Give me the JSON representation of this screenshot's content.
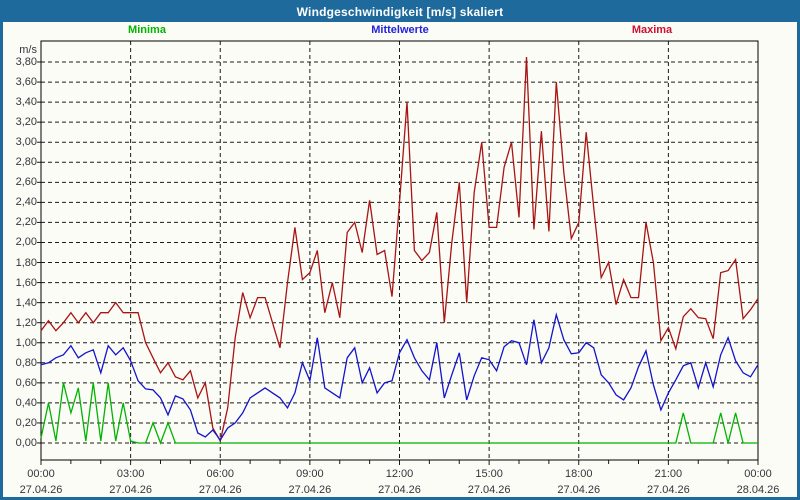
{
  "window": {
    "title": "Windgeschwindigkeit [m/s] skaliert"
  },
  "legend": [
    {
      "label": "Minima",
      "color": "#00b400"
    },
    {
      "label": "Mittelwerte",
      "color": "#2222dd"
    },
    {
      "label": "Maxima",
      "color": "#cc1133"
    }
  ],
  "axes": {
    "unit_label": "m/s",
    "y_ticks": [
      "0,00",
      "0,20",
      "0,40",
      "0,60",
      "0,80",
      "1,00",
      "1,20",
      "1,40",
      "1,60",
      "1,80",
      "2,00",
      "2,20",
      "2,40",
      "2,60",
      "2,80",
      "3,00",
      "3,20",
      "3,40",
      "3,60",
      "3,80"
    ],
    "x_ticks": [
      {
        "time": "00:00",
        "date": "27.04.26"
      },
      {
        "time": "03:00",
        "date": "27.04.26"
      },
      {
        "time": "06:00",
        "date": "27.04.26"
      },
      {
        "time": "09:00",
        "date": "27.04.26"
      },
      {
        "time": "12:00",
        "date": "27.04.26"
      },
      {
        "time": "15:00",
        "date": "27.04.26"
      },
      {
        "time": "18:00",
        "date": "27.04.26"
      },
      {
        "time": "21:00",
        "date": "27.04.26"
      },
      {
        "time": "00:00",
        "date": "28.04.26"
      }
    ]
  },
  "chart_data": {
    "type": "line",
    "title": "Windgeschwindigkeit [m/s] skaliert",
    "ylabel": "m/s",
    "ylim": [
      0.0,
      3.8
    ],
    "grid": true,
    "x_start": "27.04.26 00:00",
    "x_end": "28.04.26 00:00",
    "x_step_minutes": 15,
    "series": [
      {
        "name": "Maxima",
        "color": "#a81414",
        "values": [
          1.12,
          1.22,
          1.12,
          1.2,
          1.3,
          1.2,
          1.3,
          1.2,
          1.3,
          1.3,
          1.4,
          1.3,
          1.3,
          1.3,
          1.0,
          0.85,
          0.7,
          0.8,
          0.66,
          0.63,
          0.72,
          0.45,
          0.6,
          0.15,
          0.02,
          0.35,
          1.05,
          1.5,
          1.25,
          1.45,
          1.45,
          1.2,
          0.95,
          1.6,
          2.15,
          1.63,
          1.7,
          1.92,
          1.3,
          1.6,
          1.25,
          2.1,
          2.2,
          1.9,
          2.42,
          1.88,
          1.92,
          1.46,
          2.4,
          3.4,
          1.92,
          1.82,
          1.9,
          2.3,
          1.2,
          2.0,
          2.6,
          1.4,
          2.5,
          3.0,
          2.15,
          2.15,
          2.75,
          3.0,
          2.25,
          3.85,
          2.13,
          3.11,
          2.11,
          3.6,
          2.7,
          2.04,
          2.2,
          3.1,
          2.35,
          1.65,
          1.8,
          1.38,
          1.63,
          1.45,
          1.45,
          2.2,
          1.8,
          1.02,
          1.15,
          0.94,
          1.26,
          1.34,
          1.25,
          1.24,
          1.04,
          1.7,
          1.72,
          1.83,
          1.24,
          1.33,
          1.44
        ]
      },
      {
        "name": "Mittelwerte",
        "color": "#1414cc",
        "values": [
          0.78,
          0.8,
          0.85,
          0.88,
          0.97,
          0.85,
          0.9,
          0.93,
          0.7,
          0.97,
          0.88,
          0.95,
          0.82,
          0.62,
          0.54,
          0.53,
          0.45,
          0.28,
          0.47,
          0.44,
          0.33,
          0.1,
          0.06,
          0.13,
          0.03,
          0.15,
          0.2,
          0.3,
          0.45,
          0.5,
          0.55,
          0.5,
          0.45,
          0.35,
          0.5,
          0.8,
          0.62,
          1.05,
          0.55,
          0.5,
          0.45,
          0.85,
          0.95,
          0.6,
          0.75,
          0.5,
          0.6,
          0.62,
          0.9,
          1.03,
          0.85,
          0.72,
          0.63,
          1.0,
          0.45,
          0.68,
          0.9,
          0.43,
          0.67,
          0.85,
          0.83,
          0.72,
          0.96,
          1.02,
          1.0,
          0.78,
          1.23,
          0.8,
          0.95,
          1.28,
          1.03,
          0.89,
          0.9,
          1.0,
          0.95,
          0.68,
          0.6,
          0.48,
          0.43,
          0.55,
          0.76,
          0.92,
          0.58,
          0.33,
          0.5,
          0.63,
          0.77,
          0.8,
          0.55,
          0.8,
          0.56,
          0.88,
          1.05,
          0.82,
          0.7,
          0.66,
          0.78
        ]
      },
      {
        "name": "Minima",
        "color": "#00b400",
        "values": [
          0.05,
          0.4,
          0.02,
          0.6,
          0.3,
          0.55,
          0.02,
          0.6,
          0.02,
          0.6,
          0.02,
          0.4,
          0.02,
          0.0,
          0.0,
          0.2,
          0.0,
          0.2,
          0.0,
          0.0,
          0,
          0,
          0,
          0,
          0,
          0,
          0,
          0,
          0,
          0,
          0,
          0,
          0,
          0,
          0,
          0,
          0,
          0,
          0,
          0,
          0,
          0,
          0,
          0,
          0,
          0,
          0,
          0,
          0,
          0,
          0,
          0,
          0,
          0,
          0,
          0,
          0,
          0,
          0,
          0,
          0,
          0,
          0,
          0,
          0,
          0,
          0,
          0,
          0,
          0,
          0,
          0,
          0,
          0,
          0,
          0,
          0,
          0,
          0,
          0,
          0,
          0,
          0,
          0,
          0,
          0,
          0.3,
          0,
          0,
          0,
          0,
          0.3,
          0,
          0.3,
          0,
          0,
          0
        ]
      }
    ]
  }
}
